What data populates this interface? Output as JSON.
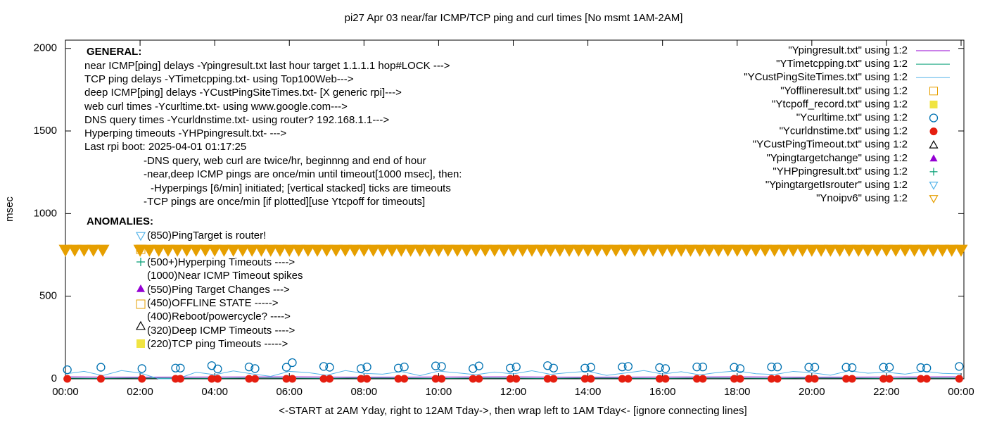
{
  "chart_data": {
    "type": "scatter",
    "title": "pi27 Apr 03  near/far ICMP/TCP ping and curl times [No msmt 1AM-2AM]",
    "xlabel": "<-START at 2AM Yday, right to 12AM Tday->, then wrap left to 1AM Tday<- [ignore connecting lines]",
    "ylabel": "msec",
    "xlim": [
      0,
      24
    ],
    "ylim": [
      0,
      2050
    ],
    "xticks": [
      {
        "value": 0,
        "label": "00:00"
      },
      {
        "value": 2,
        "label": "02:00"
      },
      {
        "value": 4,
        "label": "04:00"
      },
      {
        "value": 6,
        "label": "06:00"
      },
      {
        "value": 8,
        "label": "08:00"
      },
      {
        "value": 10,
        "label": "10:00"
      },
      {
        "value": 12,
        "label": "12:00"
      },
      {
        "value": 14,
        "label": "14:00"
      },
      {
        "value": 16,
        "label": "16:00"
      },
      {
        "value": 18,
        "label": "18:00"
      },
      {
        "value": 20,
        "label": "20:00"
      },
      {
        "value": 22,
        "label": "22:00"
      },
      {
        "value": 24,
        "label": "00:00"
      }
    ],
    "yticks": [
      0,
      500,
      1000,
      1500,
      2000
    ],
    "grid": false,
    "legend": "top-right",
    "general": [
      "GENERAL:",
      "near ICMP[ping] delays -Ypingresult.txt last hour target 1.1.1.1 hop#LOCK --->",
      "TCP ping delays -YTimetcpping.txt- using Top100Web--->",
      "deep ICMP[ping] delays -YCustPingSiteTimes.txt- [X generic rpi]--->",
      "web curl times -Ycurltime.txt- using www.google.com--->",
      "DNS query times -Ycurldnstime.txt- using router? 192.168.1.1--->",
      "Hyperping timeouts -YHPpingresult.txt- --->",
      "Last rpi boot: 2025-04-01 01:17:25",
      "-DNS query, web curl are twice/hr, beginnng and end of hour",
      "-near,deep ICMP pings are once/min until timeout[1000 msec], then:",
      "-Hyperpings [6/min] initiated; [vertical stacked] ticks are timeouts",
      "-TCP pings are once/min [if plotted][use Ytcpoff for timeouts]"
    ],
    "anomalies": [
      "ANOMALIES:",
      "(850)PingTarget is router!",
      "(500+)Hyperping Timeouts ---->",
      "(1000)Near ICMP Timeout spikes",
      "(550)Ping Target Changes --->",
      "(450)OFFLINE STATE ----->",
      "(400)Reboot/powercycle? ---->",
      "(320)Deep ICMP Timeouts ---->",
      "(220)TCP ping Timeouts ----->"
    ],
    "series": [
      {
        "name": "\"Ypingresult.txt\" using 1:2",
        "color": "#9400d3",
        "marker": "line",
        "x": [
          0,
          2,
          4,
          6,
          8,
          10,
          12,
          14,
          16,
          18,
          20,
          22,
          24
        ],
        "values": [
          12,
          10,
          11,
          12,
          10,
          11,
          12,
          10,
          11,
          12,
          10,
          11,
          12
        ]
      },
      {
        "name": "\"YTimetcpping.txt\" using 1:2",
        "color": "#009e73",
        "marker": "line",
        "x": [
          0,
          1,
          2,
          3,
          4,
          5,
          6,
          7,
          8,
          9,
          10,
          11,
          12,
          13,
          14,
          15,
          16,
          17,
          18,
          19,
          20,
          21,
          22,
          23,
          24
        ],
        "values": [
          4,
          3,
          5,
          4,
          3,
          5,
          4,
          3,
          5,
          4,
          3,
          5,
          4,
          3,
          5,
          4,
          3,
          5,
          4,
          3,
          5,
          4,
          3,
          5,
          4
        ]
      },
      {
        "name": "\"YCustPingSiteTimes.txt\" using 1:2",
        "color": "#56b4e9",
        "marker": "line",
        "x": [
          0,
          0.5,
          1,
          1.5,
          2,
          2.5,
          3,
          3.5,
          4,
          4.5,
          5,
          5.5,
          6,
          6.5,
          7,
          7.5,
          8,
          8.5,
          9,
          9.5,
          10,
          10.5,
          11,
          11.5,
          12,
          12.5,
          13,
          13.5,
          14,
          14.5,
          15,
          15.5,
          16,
          16.5,
          17,
          17.5,
          18,
          18.5,
          19,
          19.5,
          20,
          20.5,
          21,
          21.5,
          22,
          22.5,
          23,
          23.5,
          24
        ],
        "values": [
          30,
          45,
          20,
          50,
          35,
          0,
          0,
          40,
          25,
          48,
          30,
          15,
          45,
          38,
          22,
          50,
          33,
          28,
          44,
          19,
          47,
          36,
          25,
          41,
          30,
          49,
          27,
          38,
          46,
          21,
          35,
          50,
          29,
          43,
          24,
          39,
          48,
          31,
          26,
          45,
          37,
          22,
          49,
          34,
          40,
          28,
          46,
          33,
          30
        ]
      },
      {
        "name": "\"Yofflineresult.txt\" using 1:2",
        "color": "#e69f00",
        "marker": "square-open",
        "x": [],
        "values": []
      },
      {
        "name": "\"Ytcpoff_record.txt\" using 1:2",
        "color": "#f0e442",
        "marker": "square-filled",
        "x": [],
        "values": []
      },
      {
        "name": "\"Ycurltime.txt\" using 1:2",
        "color": "#0072b2",
        "marker": "circle-open",
        "x": [
          0.05,
          0.95,
          2.05,
          2.95,
          3.08,
          3.92,
          4.08,
          4.92,
          5.08,
          5.92,
          6.08,
          6.92,
          7.08,
          7.92,
          8.08,
          8.92,
          9.08,
          9.92,
          10.08,
          10.92,
          11.08,
          11.92,
          12.08,
          12.92,
          13.08,
          13.92,
          14.08,
          14.92,
          15.08,
          15.92,
          16.08,
          16.92,
          17.08,
          17.92,
          18.08,
          18.92,
          19.08,
          19.92,
          20.08,
          20.92,
          21.08,
          21.92,
          22.08,
          22.92,
          23.08,
          23.95
        ],
        "values": [
          55,
          70,
          62,
          65,
          65,
          80,
          60,
          72,
          62,
          70,
          98,
          75,
          70,
          62,
          72,
          65,
          72,
          78,
          75,
          62,
          78,
          65,
          72,
          80,
          65,
          65,
          70,
          72,
          75,
          68,
          62,
          72,
          72,
          70,
          62,
          72,
          72,
          70,
          70,
          70,
          68,
          70,
          70,
          68,
          65,
          75
        ]
      },
      {
        "name": "\"Ycurldnstime.txt\" using 1:2",
        "color": "#e51e10",
        "marker": "circle-filled",
        "x": [
          0.05,
          0.95,
          2.05,
          2.95,
          3.08,
          3.92,
          4.08,
          4.92,
          5.08,
          5.92,
          6.08,
          6.92,
          7.08,
          7.92,
          8.08,
          8.92,
          9.08,
          9.92,
          10.08,
          10.92,
          11.08,
          11.92,
          12.08,
          12.92,
          13.08,
          13.92,
          14.08,
          14.92,
          15.08,
          15.92,
          16.08,
          16.92,
          17.08,
          17.92,
          18.08,
          18.92,
          19.08,
          19.92,
          20.08,
          20.92,
          21.08,
          21.92,
          22.08,
          22.92,
          23.08,
          23.95
        ],
        "values": [
          0,
          0,
          0,
          0,
          0,
          0,
          0,
          0,
          0,
          0,
          0,
          0,
          0,
          0,
          0,
          0,
          0,
          0,
          0,
          0,
          0,
          0,
          0,
          0,
          0,
          0,
          0,
          0,
          0,
          0,
          0,
          0,
          0,
          0,
          0,
          0,
          0,
          0,
          0,
          0,
          0,
          0,
          0,
          0,
          0,
          0
        ]
      },
      {
        "name": "\"YCustPingTimeout.txt\" using 1:2",
        "color": "#000000",
        "marker": "triangle-open",
        "x": [],
        "values": []
      },
      {
        "name": "\"Ypingtargetchange\" using 1:2",
        "color": "#9400d3",
        "marker": "triangle-filled",
        "x": [],
        "values": []
      },
      {
        "name": "\"YHPpingresult.txt\" using 1:2",
        "color": "#009e73",
        "marker": "plus",
        "x": [],
        "values": []
      },
      {
        "name": "\"YpingtargetIsrouter\" using 1:2",
        "color": "#56b4e9",
        "marker": "triangle-down-open",
        "x": [],
        "values": []
      },
      {
        "name": "\"Ynoipv6\" using 1:2",
        "color": "#e69f00",
        "marker": "triangle-down-open",
        "x": [
          0,
          0.25,
          0.5,
          0.75,
          1,
          2,
          2.25,
          2.5,
          2.75,
          3,
          3.25,
          3.5,
          3.75,
          4,
          4.25,
          4.5,
          4.75,
          5,
          5.25,
          5.5,
          5.75,
          6,
          6.25,
          6.5,
          6.75,
          7,
          7.25,
          7.5,
          7.75,
          8,
          8.25,
          8.5,
          8.75,
          9,
          9.25,
          9.5,
          9.75,
          10,
          10.25,
          10.5,
          10.75,
          11,
          11.25,
          11.5,
          11.75,
          12,
          12.25,
          12.5,
          12.75,
          13,
          13.25,
          13.5,
          13.75,
          14,
          14.25,
          14.5,
          14.75,
          15,
          15.25,
          15.5,
          15.75,
          16,
          16.25,
          16.5,
          16.75,
          17,
          17.25,
          17.5,
          17.75,
          18,
          18.25,
          18.5,
          18.75,
          19,
          19.25,
          19.5,
          19.75,
          20,
          20.25,
          20.5,
          20.75,
          21,
          21.25,
          21.5,
          21.75,
          22,
          22.25,
          22.5,
          22.75,
          23,
          23.25,
          23.5,
          23.75,
          24
        ],
        "values": [
          780,
          780,
          780,
          780,
          780,
          780,
          780,
          780,
          780,
          780,
          780,
          780,
          780,
          780,
          780,
          780,
          780,
          780,
          780,
          780,
          780,
          780,
          780,
          780,
          780,
          780,
          780,
          780,
          780,
          780,
          780,
          780,
          780,
          780,
          780,
          780,
          780,
          780,
          780,
          780,
          780,
          780,
          780,
          780,
          780,
          780,
          780,
          780,
          780,
          780,
          780,
          780,
          780,
          780,
          780,
          780,
          780,
          780,
          780,
          780,
          780,
          780,
          780,
          780,
          780,
          780,
          780,
          780,
          780,
          780,
          780,
          780,
          780,
          780,
          780,
          780,
          780,
          780,
          780,
          780,
          780,
          780,
          780,
          780,
          780,
          780,
          780,
          780,
          780,
          780,
          780,
          780,
          780,
          780
        ]
      }
    ]
  }
}
